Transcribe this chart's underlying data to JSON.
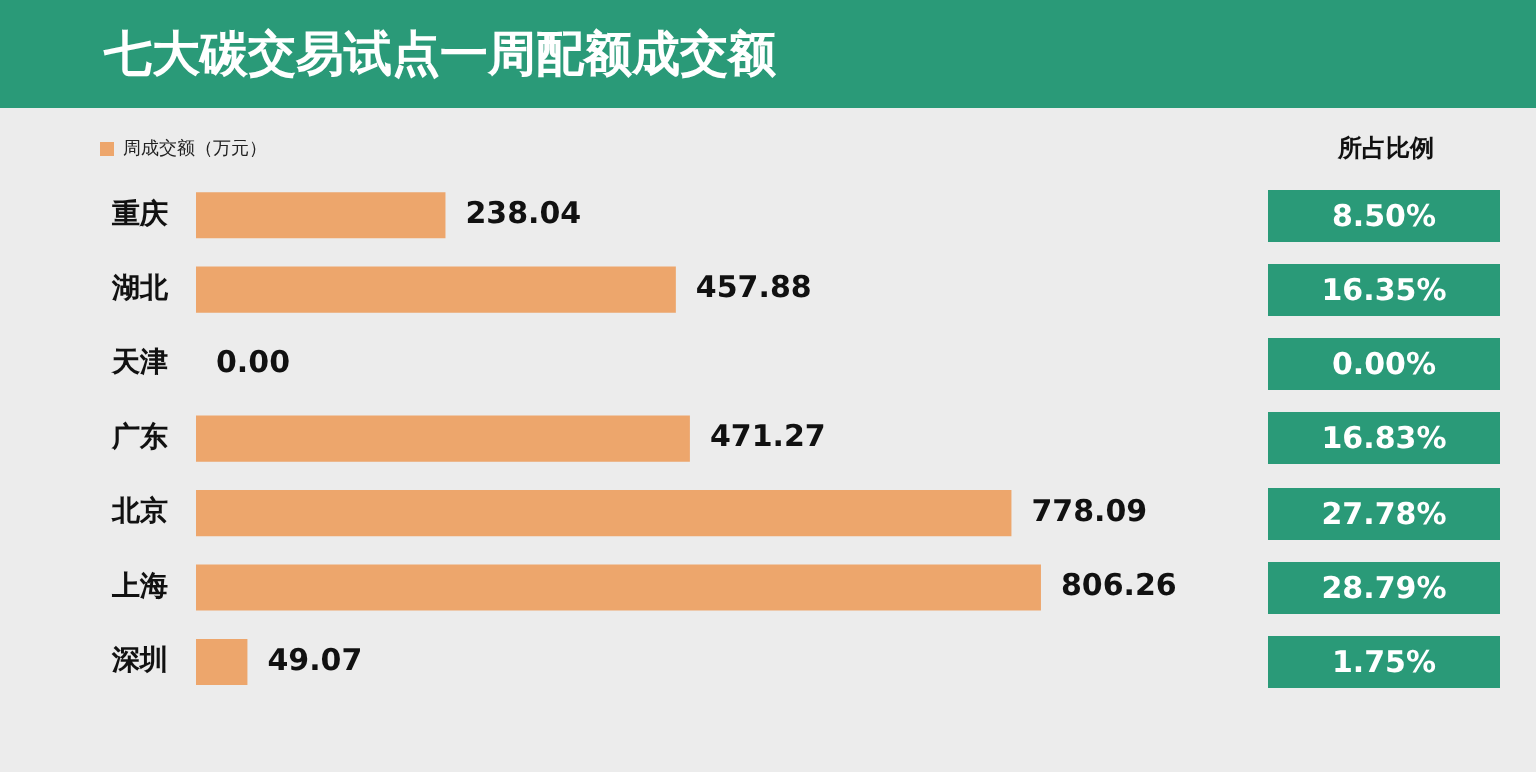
{
  "chart_data": {
    "type": "bar",
    "orientation": "horizontal",
    "title": "七大碳交易试点一周配额成交额",
    "categories": [
      "重庆",
      "湖北",
      "天津",
      "广东",
      "北京",
      "上海",
      "深圳"
    ],
    "series": [
      {
        "name": "周成交额（万元）",
        "color": "#eda66c",
        "values": [
          238.04,
          457.88,
          0,
          471.27,
          778.09,
          806.26,
          49.07
        ],
        "value_labels": [
          "238.04",
          "457.88",
          "0.00",
          "471.27",
          "778.09",
          "806.26",
          "49.07"
        ]
      }
    ],
    "legend": "top left",
    "grid": false,
    "tick_labels": "y",
    "annotations": [
      "所占比例",
      "8.50%",
      "16.35%",
      "0.00%",
      "16.83%",
      "27.78%",
      "28.79%",
      "1.75%"
    ]
  }
}
